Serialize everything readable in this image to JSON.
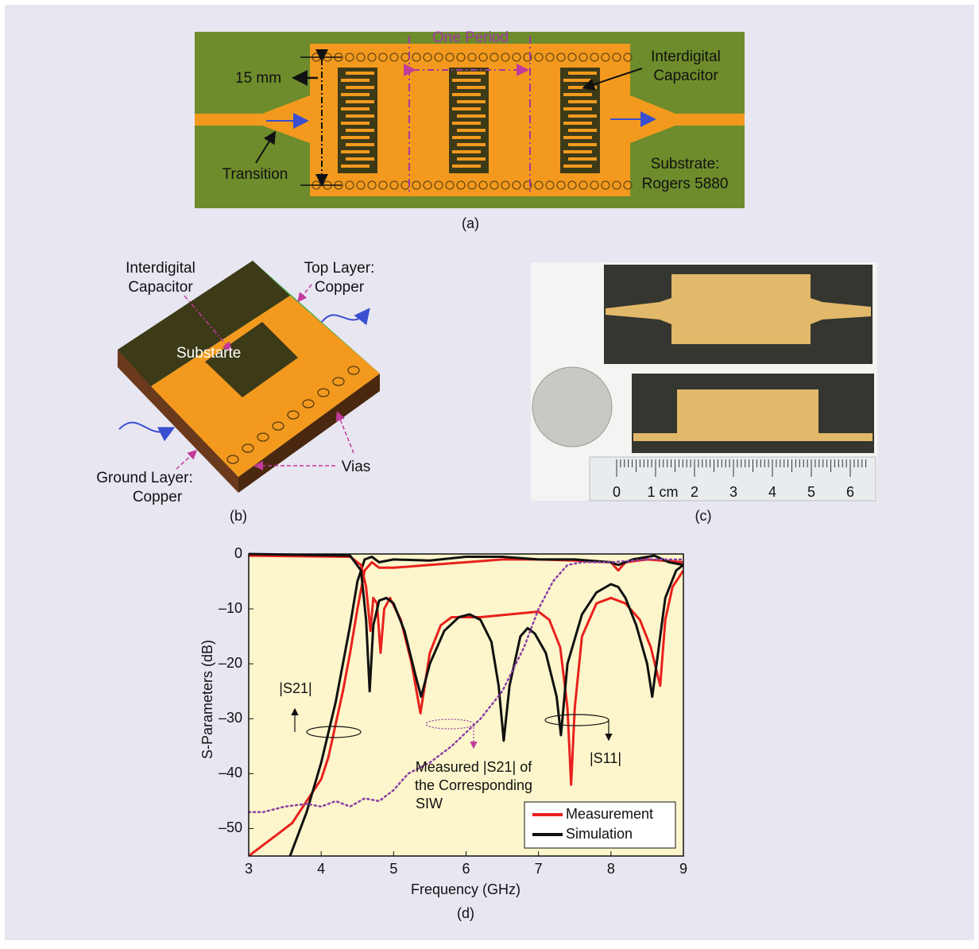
{
  "panel_a": {
    "one_period": "One Period",
    "width": "15 mm",
    "cap_1": "Interdigital",
    "cap_2": "Capacitor",
    "transition": "Transition",
    "substrate_1": "Substrate:",
    "substrate_2": "Rogers 5880",
    "caption": "(a)"
  },
  "panel_b": {
    "cap_1": "Interdigital",
    "cap_2": "Capacitor",
    "top_1": "Top Layer:",
    "top_2": "Copper",
    "substrate": "Substarte",
    "ground_1": "Ground Layer:",
    "ground_2": "Copper",
    "vias": "Vias",
    "caption": "(b)"
  },
  "panel_c": {
    "ruler": [
      "0",
      "1 cm",
      "2",
      "3",
      "4",
      "5",
      "6"
    ],
    "caption": "(c)"
  },
  "chart_data": {
    "type": "line",
    "caption": "(d)",
    "x_label": "Frequency (GHz)",
    "y_label": "S-Parameters (dB)",
    "xlim": [
      3,
      9
    ],
    "ylim": [
      -55,
      0
    ],
    "xticks": [
      3,
      4,
      5,
      6,
      7,
      8,
      9
    ],
    "yticks": [
      {
        "value": -50,
        "label": "–50"
      },
      {
        "value": -40,
        "label": "–40"
      },
      {
        "value": -30,
        "label": "–30"
      },
      {
        "value": -20,
        "label": "–20"
      },
      {
        "value": -10,
        "label": "–10"
      },
      0
    ],
    "legend": "lower right",
    "background": "#fdf6cc",
    "annotations": [
      "|S21|",
      "|S11|",
      "Measured |S21| of",
      "the Corresponding",
      "SIW"
    ],
    "series": [
      {
        "name": "Measurement",
        "color": "#e8211d",
        "x": [
          3,
          3.2,
          3.4,
          3.6,
          3.8,
          4.0,
          4.1,
          4.2,
          4.3,
          4.4,
          4.5,
          4.6,
          4.7,
          4.8,
          5.0,
          5.5,
          6.0,
          6.5,
          7.0,
          7.5,
          8.0,
          8.1,
          8.2,
          8.5,
          9
        ],
        "values": [
          -55,
          -53,
          -51,
          -49,
          -45,
          -41,
          -37,
          -31,
          -25,
          -18,
          -10,
          -3,
          -1.5,
          -2.5,
          -2.5,
          -2,
          -1.5,
          -1,
          -1,
          -1.2,
          -1.5,
          -3,
          -1.5,
          -1,
          -1.5
        ]
      },
      {
        "name": "Simulation",
        "color": "#111111",
        "x": [
          3.57,
          3.8,
          4.0,
          4.2,
          4.4,
          4.5,
          4.6,
          4.7,
          4.8,
          5.0,
          5.5,
          6.0,
          6.5,
          7.0,
          7.5,
          8.0,
          8.1,
          8.3,
          8.6,
          8.8,
          9
        ],
        "values": [
          -55,
          -47,
          -38,
          -27,
          -13,
          -5,
          -1,
          -0.5,
          -1.5,
          -1,
          -1.2,
          -0.5,
          -0.5,
          -1,
          -1,
          -1.5,
          -2,
          -1,
          -0.3,
          -1.5,
          -2
        ]
      },
      {
        "color": "#e8211d",
        "x": [
          3,
          4.4,
          4.55,
          4.62,
          4.68,
          4.72,
          4.77,
          4.82,
          4.87,
          4.95,
          5.1,
          5.25,
          5.37,
          5.5,
          5.65,
          5.8,
          6.2,
          6.6,
          7.0,
          7.15,
          7.3,
          7.4,
          7.45,
          7.5,
          7.6,
          7.8,
          8.0,
          8.2,
          8.4,
          8.55,
          8.68,
          8.75,
          8.85,
          9
        ],
        "values": [
          -0.3,
          -0.5,
          -2,
          -6,
          -14,
          -8,
          -9,
          -18,
          -10,
          -8,
          -12,
          -20,
          -29,
          -18,
          -13,
          -11.5,
          -11.5,
          -11,
          -10.5,
          -12,
          -17,
          -28,
          -42,
          -28,
          -15,
          -9,
          -8,
          -9,
          -12,
          -17,
          -24,
          -12,
          -6,
          -3
        ]
      },
      {
        "color": "#111111",
        "x": [
          3,
          4.4,
          4.55,
          4.62,
          4.67,
          4.72,
          4.8,
          4.9,
          5.0,
          5.15,
          5.3,
          5.38,
          5.5,
          5.7,
          5.9,
          6.05,
          6.2,
          6.35,
          6.45,
          6.52,
          6.6,
          6.75,
          6.85,
          6.95,
          7.1,
          7.25,
          7.31,
          7.4,
          7.6,
          7.8,
          8.0,
          8.1,
          8.2,
          8.35,
          8.5,
          8.57,
          8.65,
          8.75,
          8.9,
          9
        ],
        "values": [
          0,
          -0.3,
          -3,
          -12,
          -25,
          -13,
          -8.5,
          -8,
          -9,
          -14,
          -22,
          -26,
          -20,
          -14,
          -11.5,
          -11,
          -12,
          -16,
          -24,
          -34,
          -24,
          -15,
          -13.5,
          -14.5,
          -18,
          -26,
          -33,
          -20,
          -11,
          -7,
          -5.5,
          -6,
          -8,
          -13,
          -20,
          -26,
          -18,
          -8,
          -3,
          -2
        ]
      },
      {
        "color": "#8a3fa6",
        "style": "dotted",
        "x": [
          3,
          3.2,
          3.5,
          3.8,
          4.0,
          4.2,
          4.4,
          4.6,
          4.8,
          5.0,
          5.2,
          5.5,
          5.8,
          6.2,
          6.5,
          6.8,
          7.0,
          7.2,
          7.4,
          7.6,
          8.0,
          8.5,
          9
        ],
        "values": [
          -47,
          -47,
          -46,
          -45.5,
          -46,
          -45,
          -46,
          -44.5,
          -45,
          -43,
          -40,
          -38,
          -35,
          -30,
          -25,
          -17,
          -10,
          -5,
          -2,
          -1.5,
          -1.5,
          -1,
          -1
        ]
      }
    ]
  }
}
